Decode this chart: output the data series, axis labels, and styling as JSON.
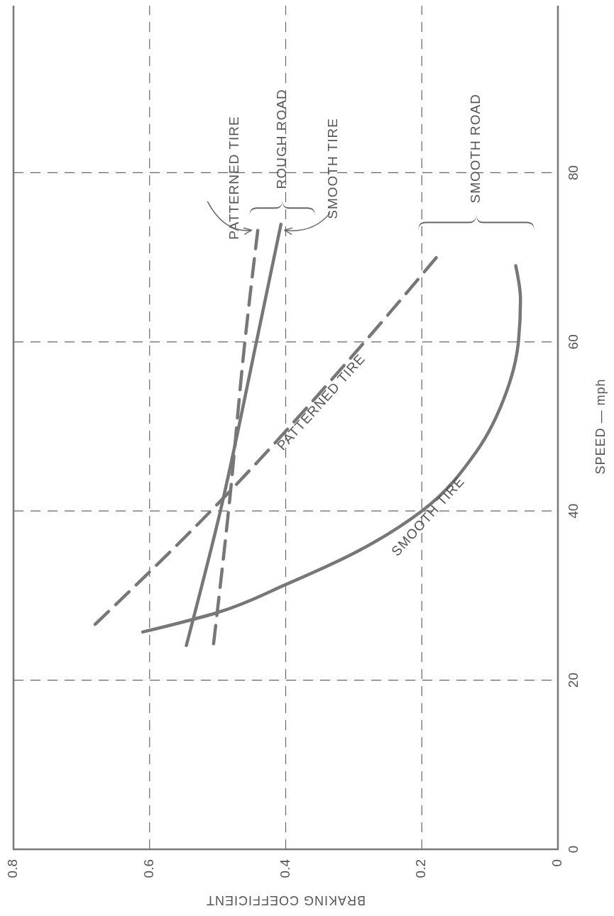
{
  "chart_data": {
    "type": "line",
    "xlabel": "BRAKING COEFFICIENT",
    "ylabel": "SPEED — mph",
    "xlim": [
      0.8,
      0
    ],
    "ylim": [
      0,
      100
    ],
    "xticks": [
      0.8,
      0.6,
      0.4,
      0.2,
      0
    ],
    "yticks": [
      0,
      20,
      40,
      60,
      80
    ],
    "grid": true,
    "marker": "none",
    "series": [
      {
        "name": "PATTERNED TIRE",
        "color": "#777777",
        "line_style": "dashed",
        "x": [
          0.68,
          0.51,
          0.284,
          0.171
        ],
        "values": [
          26.6,
          40,
          60,
          70.7
        ]
      },
      {
        "name": "SMOOTH TIRE",
        "color": "#777777",
        "line_style": "solid",
        "x": [
          0.61,
          0.5,
          0.4,
          0.3,
          0.2,
          0.12,
          0.076,
          0.058,
          0.055,
          0.062
        ],
        "values": [
          25.7,
          28,
          31.3,
          35,
          40,
          47,
          54,
          60,
          65,
          69
        ]
      },
      {
        "name": "PATTERNED TIRE",
        "color": "#777777",
        "line_style": "dashed",
        "x": [
          0.506,
          0.484,
          0.46,
          0.44
        ],
        "values": [
          24.3,
          40,
          60,
          73.9
        ]
      },
      {
        "name": "SMOOTH TIRE",
        "color": "#777777",
        "line_style": "solid",
        "x": [
          0.546,
          0.496,
          0.443,
          0.407
        ],
        "values": [
          24.1,
          40,
          60,
          73.9
        ]
      }
    ],
    "annotations": [
      "ROUGH ROAD",
      "SMOOTH ROAD"
    ]
  }
}
